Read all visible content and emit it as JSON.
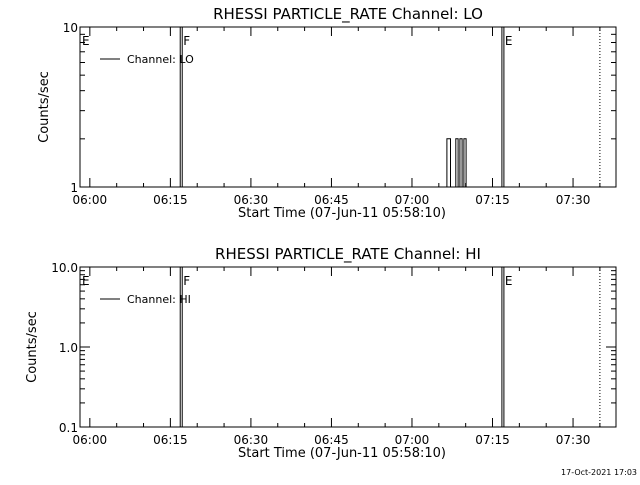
{
  "timestamp": "17-Oct-2021 17:03",
  "chart_data": [
    {
      "type": "line",
      "title": "RHESSI PARTICLE_RATE Channel: LO",
      "xlabel": "Start Time (07-Jun-11 05:58:10)",
      "ylabel": "Counts/sec",
      "y_scale": "log",
      "ylim": [
        1,
        10
      ],
      "y_ticks": [
        {
          "value": 1,
          "label": "1"
        },
        {
          "value": 10,
          "label": "10"
        }
      ],
      "xlim": [
        "05:58:10",
        "07:38:00"
      ],
      "x_ticks": [
        "06:00",
        "06:15",
        "06:30",
        "06:45",
        "07:00",
        "07:15",
        "07:30"
      ],
      "legend": {
        "position": "top-left",
        "entries": [
          "Channel: LO"
        ]
      },
      "markers": [
        {
          "label": "E",
          "time": "05:58:10",
          "style": "solid"
        },
        {
          "label": "F",
          "time": "06:16:50",
          "style": "solid"
        },
        {
          "label": "E",
          "time": "07:16:45",
          "style": "solid"
        },
        {
          "label": "",
          "time": "07:35:00",
          "style": "dotted"
        }
      ],
      "series": [
        {
          "name": "Channel: LO",
          "points": [
            [
              "07:06:30",
              1
            ],
            [
              "07:06:30",
              2
            ],
            [
              "07:07:10",
              2
            ],
            [
              "07:07:10",
              1
            ],
            [
              "07:08:10",
              1
            ],
            [
              "07:08:10",
              2
            ],
            [
              "07:08:35",
              2
            ],
            [
              "07:08:35",
              1
            ],
            [
              "07:08:55",
              1
            ],
            [
              "07:08:55",
              2
            ],
            [
              "07:09:20",
              2
            ],
            [
              "07:09:20",
              1
            ],
            [
              "07:09:40",
              1
            ],
            [
              "07:09:40",
              2
            ],
            [
              "07:10:05",
              2
            ],
            [
              "07:10:05",
              1
            ]
          ]
        }
      ]
    },
    {
      "type": "line",
      "title": "RHESSI PARTICLE_RATE Channel: HI",
      "xlabel": "Start Time (07-Jun-11 05:58:10)",
      "ylabel": "Counts/sec",
      "y_scale": "log",
      "ylim": [
        0.1,
        10
      ],
      "y_ticks": [
        {
          "value": 0.1,
          "label": "0.1"
        },
        {
          "value": 1,
          "label": "1.0"
        },
        {
          "value": 10,
          "label": "10.0"
        }
      ],
      "xlim": [
        "05:58:10",
        "07:38:00"
      ],
      "x_ticks": [
        "06:00",
        "06:15",
        "06:30",
        "06:45",
        "07:00",
        "07:15",
        "07:30"
      ],
      "legend": {
        "position": "top-left",
        "entries": [
          "Channel: HI"
        ]
      },
      "markers": [
        {
          "label": "E",
          "time": "05:58:10",
          "style": "solid"
        },
        {
          "label": "F",
          "time": "06:16:50",
          "style": "solid"
        },
        {
          "label": "E",
          "time": "07:16:45",
          "style": "solid"
        },
        {
          "label": "",
          "time": "07:35:00",
          "style": "dotted"
        }
      ],
      "series": [
        {
          "name": "Channel: HI",
          "points": []
        }
      ]
    }
  ]
}
